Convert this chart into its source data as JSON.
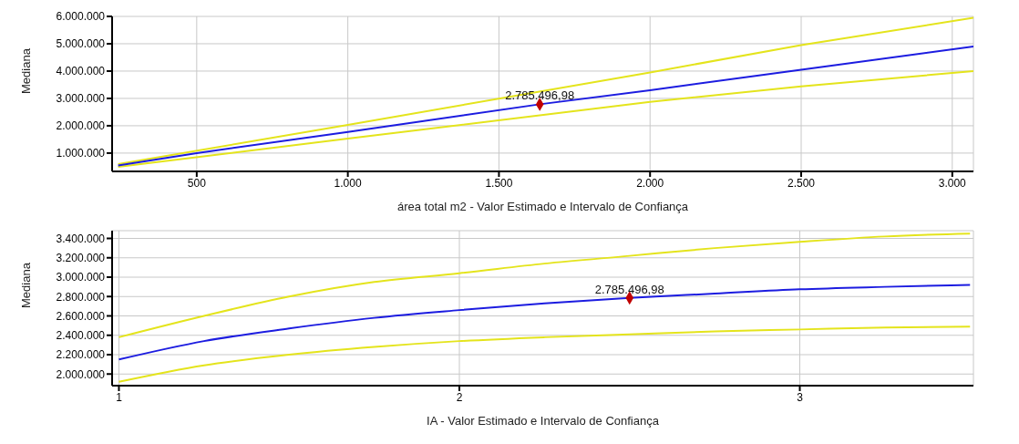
{
  "chart_data": [
    {
      "type": "line",
      "xlabel": "área total  m2 - Valor Estimado e Intervalo de Confiança",
      "ylabel": "Mediana",
      "xlim": [
        220,
        3070
      ],
      "ylim": [
        330000,
        6000000
      ],
      "xticks": [
        500,
        {
          "value": 1000,
          "label": "1.000"
        },
        {
          "value": 1500,
          "label": "1.500"
        },
        {
          "value": 2000,
          "label": "2.000"
        },
        {
          "value": 2500,
          "label": "2.500"
        },
        {
          "value": 3000,
          "label": "3.000"
        }
      ],
      "yticks": [
        {
          "value": 1000000,
          "label": "1.000.000"
        },
        {
          "value": 2000000,
          "label": "2.000.000"
        },
        {
          "value": 3000000,
          "label": "3.000.000"
        },
        {
          "value": 4000000,
          "label": "4.000.000"
        },
        {
          "value": 5000000,
          "label": "5.000.000"
        },
        {
          "value": 6000000,
          "label": "6.000.000"
        }
      ],
      "grid": true,
      "legend": false,
      "marker": "none",
      "line_style": "solid",
      "series": [
        {
          "color": "#e4e41c",
          "x": [
            240,
            1000,
            2000,
            2500,
            3070
          ],
          "values": [
            600000,
            2030000,
            3950000,
            4950000,
            5950000
          ]
        },
        {
          "color": "#e4e41c",
          "x": [
            240,
            1000,
            2000,
            2500,
            3070
          ],
          "values": [
            500000,
            1530000,
            2870000,
            3440000,
            4000000
          ]
        },
        {
          "color": "#1c1ce0",
          "x": [
            240,
            500,
            1000,
            1635,
            2000,
            2500,
            3070
          ],
          "values": [
            550000,
            1000000,
            1770000,
            2785496.98,
            3300000,
            4050000,
            4900000
          ]
        },
        {
          "type": "scatter",
          "marker": "diamond",
          "color": "#c00000",
          "x": [
            1635
          ],
          "values": [
            2785496.98
          ]
        }
      ],
      "annotations": [
        {
          "text": "2.785.496,98",
          "x": 1635,
          "y": 2785496.98
        }
      ]
    },
    {
      "type": "line",
      "xlabel": "IA - Valor Estimado e Intervalo de Confiança",
      "ylabel": "Mediana",
      "xlim": [
        0.98,
        3.51
      ],
      "ylim": [
        1880000,
        3480000
      ],
      "xticks": [
        1,
        2,
        3
      ],
      "yticks": [
        {
          "value": 2000000,
          "label": "2.000.000"
        },
        {
          "value": 2200000,
          "label": "2.200.000"
        },
        {
          "value": 2400000,
          "label": "2.400.000"
        },
        {
          "value": 2600000,
          "label": "2.600.000"
        },
        {
          "value": 2800000,
          "label": "2.800.000"
        },
        {
          "value": 3000000,
          "label": "3.000.000"
        },
        {
          "value": 3200000,
          "label": "3.200.000"
        },
        {
          "value": 3400000,
          "label": "3.400.000"
        }
      ],
      "grid": true,
      "legend": false,
      "marker": "none",
      "line_style": "solid",
      "series": [
        {
          "color": "#e4e41c",
          "x": [
            1,
            1.25,
            1.5,
            1.75,
            2,
            2.25,
            2.5,
            2.75,
            3,
            3.25,
            3.5
          ],
          "values": [
            2380000,
            2600000,
            2800000,
            2950000,
            3040000,
            3140000,
            3220000,
            3300000,
            3365000,
            3420000,
            3450000
          ]
        },
        {
          "color": "#e4e41c",
          "x": [
            1,
            1.25,
            1.5,
            1.75,
            2,
            2.25,
            2.5,
            2.75,
            3,
            3.25,
            3.5
          ],
          "values": [
            1920000,
            2090000,
            2200000,
            2280000,
            2340000,
            2380000,
            2410000,
            2440000,
            2460000,
            2480000,
            2490000
          ]
        },
        {
          "color": "#1c1ce0",
          "x": [
            1,
            1.25,
            1.5,
            1.75,
            2,
            2.25,
            2.5,
            2.75,
            3,
            3.25,
            3.5
          ],
          "values": [
            2150000,
            2340000,
            2470000,
            2580000,
            2660000,
            2730000,
            2785496.98,
            2830000,
            2875000,
            2900000,
            2920000
          ]
        },
        {
          "type": "scatter",
          "marker": "diamond",
          "color": "#c00000",
          "x": [
            2.5
          ],
          "values": [
            2785496.98
          ]
        }
      ],
      "annotations": [
        {
          "text": "2.785.496,98",
          "x": 2.5,
          "y": 2785496.98
        }
      ]
    }
  ]
}
